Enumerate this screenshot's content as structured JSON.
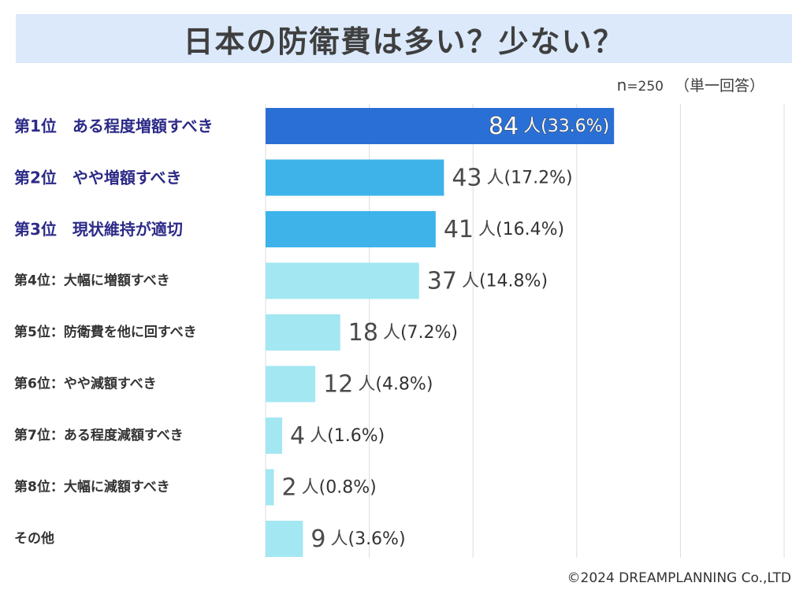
{
  "title": "日本の防衛費は多い？少ない？",
  "sample": {
    "n_mark": "n",
    "n_value": "=250",
    "kind": "（単一回答）"
  },
  "copyright": "©2024 DREAMPLANNING Co.,LTD",
  "chart_data": {
    "type": "bar",
    "orientation": "horizontal",
    "title": "日本の防衛費は多い？少ない？",
    "xlim": [
      0,
      125
    ],
    "grid": true,
    "unit_label": "人",
    "categories": [
      "第1位　ある程度増額すべき",
      "第2位　やや増額すべき",
      "第3位　現状維持が適切",
      "第4位：大幅に増額すべき",
      "第5位：防衛費を他に回すべき",
      "第6位：やや減額すべき",
      "第7位：ある程度減額すべき",
      "第8位：大幅に減額すべき",
      "その他"
    ],
    "values": [
      84,
      43,
      41,
      37,
      18,
      12,
      4,
      2,
      9
    ],
    "percents": [
      "(33.6%)",
      "(17.2%)",
      "(16.4%)",
      "(14.8%)",
      "(7.2%)",
      "(4.8%)",
      "(1.6%)",
      "(0.8%)",
      "(3.6%)"
    ],
    "highlight": [
      true,
      true,
      true,
      false,
      false,
      false,
      false,
      false,
      false
    ],
    "colors": {
      "top1": "#2a6fd6",
      "top2_3": "#3db3ea",
      "others": "#a3e7f2",
      "highlight_label": "#2c2a87",
      "label": "#333333",
      "grid": "#dddddd"
    }
  }
}
